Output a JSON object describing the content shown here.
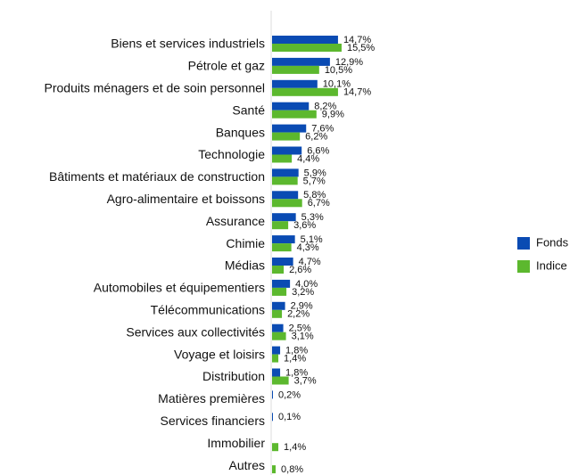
{
  "chart_data": {
    "type": "hbar",
    "categories": [
      "Biens et services industriels",
      "Pétrole et gaz",
      "Produits ménagers et de soin personnel",
      "Santé",
      "Banques",
      "Technologie",
      "Bâtiments et matériaux de construction",
      "Agro-alimentaire et boissons",
      "Assurance",
      "Chimie",
      "Médias",
      "Automobiles et équipementiers",
      "Télécommunications",
      "Services aux collectivités",
      "Voyage et loisirs",
      "Distribution",
      "Matières premières",
      "Services financiers",
      "Immobilier",
      "Autres"
    ],
    "series": [
      {
        "name": "Fonds",
        "color": "#0a4bb3",
        "values": [
          14.7,
          12.9,
          10.1,
          8.2,
          7.6,
          6.6,
          5.9,
          5.8,
          5.3,
          5.1,
          4.7,
          4.0,
          2.9,
          2.5,
          1.8,
          1.8,
          0.2,
          0.1,
          null,
          null
        ],
        "value_labels": [
          "14,7%",
          "12,9%",
          "10,1%",
          "8,2%",
          "7,6%",
          "6,6%",
          "5,9%",
          "5,8%",
          "5,3%",
          "5,1%",
          "4,7%",
          "4,0%",
          "2,9%",
          "2,5%",
          "1,8%",
          "1,8%",
          "0,2%",
          "0,1%",
          null,
          null
        ]
      },
      {
        "name": "Indice",
        "color": "#5cb82e",
        "values": [
          15.5,
          10.5,
          14.7,
          9.9,
          6.2,
          4.4,
          5.7,
          6.7,
          3.6,
          4.3,
          2.6,
          3.2,
          2.2,
          3.1,
          1.4,
          3.7,
          null,
          null,
          1.4,
          0.8
        ],
        "value_labels": [
          "15,5%",
          "10,5%",
          "14,7%",
          "9,9%",
          "6,2%",
          "4,4%",
          "5,7%",
          "6,7%",
          "3,6%",
          "4,3%",
          "2,6%",
          "3,2%",
          "2,2%",
          "3,1%",
          "1,4%",
          "3,7%",
          null,
          null,
          "1,4%",
          "0,8%"
        ]
      }
    ],
    "legend": "right"
  }
}
